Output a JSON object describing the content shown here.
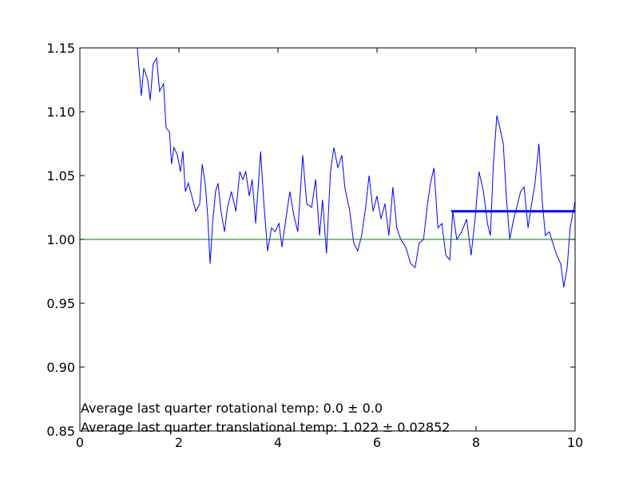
{
  "chart_data": {
    "type": "line",
    "xlim": [
      0,
      10
    ],
    "ylim": [
      0.85,
      1.15
    ],
    "xticks": [
      0,
      2,
      4,
      6,
      8,
      10
    ],
    "yticks": [
      0.85,
      {
        "value": 0.9,
        "label": "0.90"
      },
      0.95,
      {
        "value": 1.0,
        "label": "1.00"
      },
      1.05,
      {
        "value": 1.1,
        "label": "1.10"
      },
      1.15
    ],
    "annotations": [
      "Average last quarter rotational temp: 0.0 ± 0.0",
      "Average last quarter translational temp: 1.022 ± 0.02852"
    ],
    "series": [
      {
        "color": "#0000ff",
        "line_width": 1,
        "x": [
          1.16,
          1.24,
          1.29,
          1.37,
          1.42,
          1.48,
          1.55,
          1.61,
          1.69,
          1.74,
          1.81,
          1.85,
          1.9,
          1.97,
          2.03,
          2.08,
          2.13,
          2.19,
          2.26,
          2.34,
          2.42,
          2.47,
          2.53,
          2.58,
          2.63,
          2.68,
          2.74,
          2.79,
          2.85,
          2.92,
          2.98,
          3.06,
          3.15,
          3.23,
          3.29,
          3.35,
          3.42,
          3.48,
          3.55,
          3.65,
          3.71,
          3.79,
          3.87,
          3.94,
          4.02,
          4.08,
          4.16,
          4.24,
          4.32,
          4.4,
          4.5,
          4.58,
          4.68,
          4.76,
          4.84,
          4.9,
          4.98,
          5.06,
          5.13,
          5.21,
          5.29,
          5.35,
          5.45,
          5.53,
          5.61,
          5.69,
          5.77,
          5.84,
          5.92,
          6.0,
          6.08,
          6.16,
          6.24,
          6.32,
          6.4,
          6.48,
          6.58,
          6.68,
          6.77,
          6.85,
          6.94,
          7.02,
          7.08,
          7.15,
          7.23,
          7.31,
          7.39,
          7.47,
          7.53,
          7.61,
          7.71,
          7.81,
          7.9,
          7.98,
          8.06,
          8.15,
          8.23,
          8.29,
          8.35,
          8.42,
          8.48,
          8.55,
          8.61,
          8.68,
          8.76,
          8.84,
          8.9,
          8.97,
          9.05,
          9.11,
          9.19,
          9.27,
          9.34,
          9.4,
          9.48,
          9.55,
          9.63,
          9.71,
          9.77,
          9.84,
          9.9,
          10.0
        ],
        "values": [
          1.15,
          1.1125,
          1.134,
          1.125,
          1.109,
          1.1375,
          1.142,
          1.116,
          1.122,
          1.0875,
          1.084,
          1.059,
          1.072,
          1.066,
          1.053,
          1.069,
          1.0375,
          1.044,
          1.034,
          1.022,
          1.028,
          1.059,
          1.044,
          1.019,
          0.981,
          1.0125,
          1.0375,
          1.044,
          1.022,
          1.006,
          1.025,
          1.0375,
          1.022,
          1.053,
          1.047,
          1.053,
          1.034,
          1.047,
          1.0125,
          1.069,
          1.031,
          0.991,
          1.009,
          1.006,
          1.0125,
          0.994,
          1.016,
          1.0375,
          1.019,
          1.006,
          1.066,
          1.028,
          1.025,
          1.047,
          1.003,
          1.031,
          0.989,
          1.053,
          1.072,
          1.056,
          1.066,
          1.041,
          1.022,
          0.997,
          0.991,
          1.003,
          1.025,
          1.05,
          1.022,
          1.034,
          1.016,
          1.028,
          1.003,
          1.041,
          1.009,
          1.0,
          0.994,
          0.981,
          0.978,
          0.997,
          1.0,
          1.028,
          1.044,
          1.056,
          1.009,
          1.0125,
          0.9875,
          0.984,
          1.022,
          1.0,
          1.006,
          1.016,
          0.9875,
          1.016,
          1.053,
          1.0375,
          1.0125,
          1.003,
          1.059,
          1.097,
          1.0875,
          1.075,
          1.034,
          1.0,
          1.016,
          1.028,
          1.0375,
          1.041,
          1.009,
          1.025,
          1.044,
          1.075,
          1.028,
          1.003,
          1.006,
          0.997,
          0.9875,
          0.981,
          0.9625,
          0.978,
          1.009,
          1.03
        ]
      },
      {
        "color": "#008000",
        "line_width": 1,
        "x": [
          0,
          10
        ],
        "values": [
          1.0,
          1.0
        ]
      },
      {
        "color": "#0000ff",
        "line_width": 3,
        "x": [
          7.5,
          10
        ],
        "values": [
          1.022,
          1.022
        ]
      }
    ]
  }
}
